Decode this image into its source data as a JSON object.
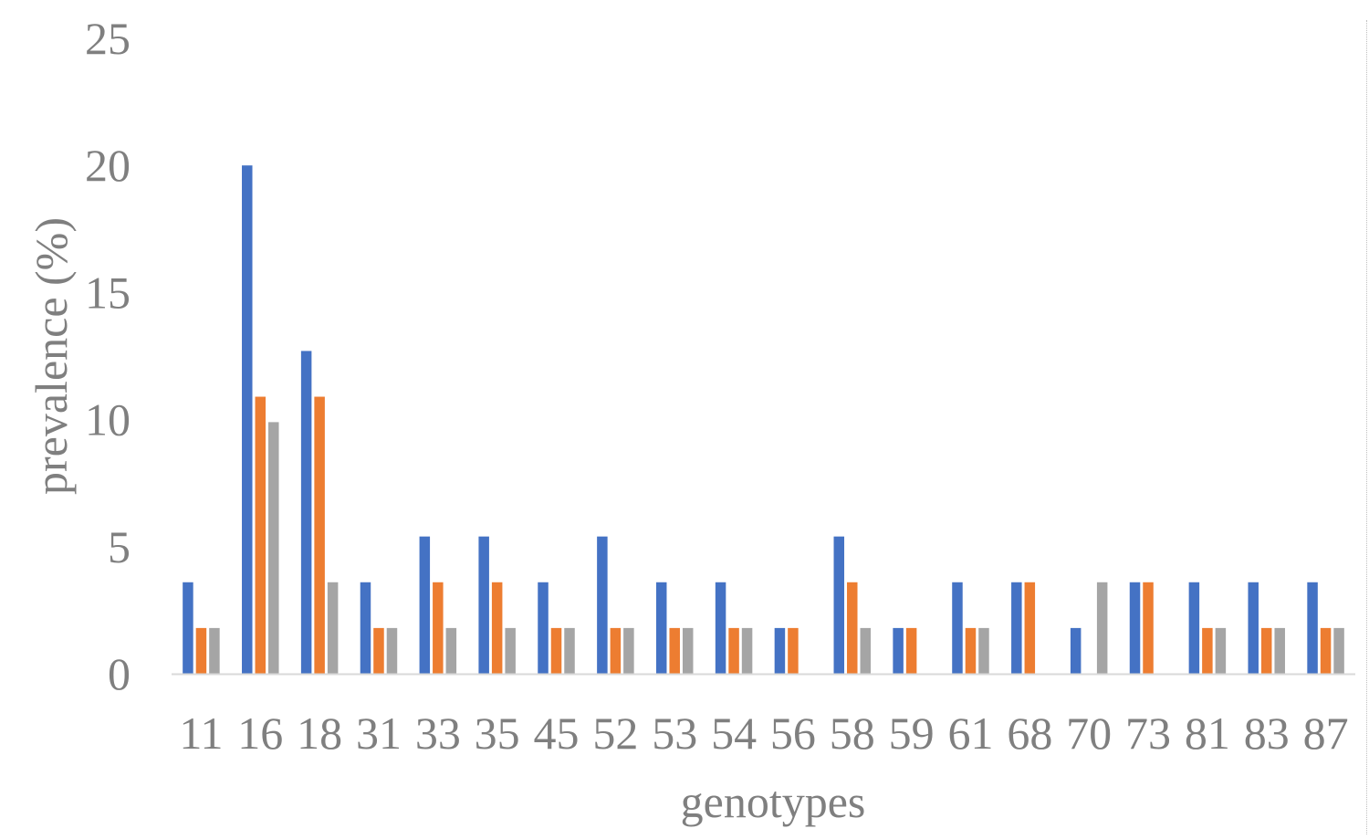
{
  "colors": {
    "series": [
      "#4472c4",
      "#ed7d31",
      "#a5a5a5"
    ],
    "axis_text": "#7f7f7f",
    "baseline": "#d9d9d9"
  },
  "chart_data": {
    "type": "bar",
    "categories": [
      "11",
      "16",
      "18",
      "31",
      "33",
      "35",
      "45",
      "52",
      "53",
      "54",
      "56",
      "58",
      "59",
      "61",
      "68",
      "70",
      "73",
      "81",
      "83",
      "87"
    ],
    "series": [
      {
        "values": [
          3.6,
          20,
          12.7,
          3.6,
          5.4,
          5.4,
          3.6,
          5.4,
          3.6,
          3.6,
          1.8,
          5.4,
          1.8,
          3.6,
          3.6,
          1.8,
          3.6,
          3.6,
          3.6,
          3.6
        ]
      },
      {
        "values": [
          1.8,
          10.9,
          10.9,
          1.8,
          3.6,
          3.6,
          1.8,
          1.8,
          1.8,
          1.8,
          1.8,
          3.6,
          1.8,
          1.8,
          3.6,
          0,
          3.6,
          1.8,
          1.8,
          1.8
        ]
      },
      {
        "values": [
          1.8,
          9.9,
          3.6,
          1.8,
          1.8,
          1.8,
          1.8,
          1.8,
          1.8,
          1.8,
          0,
          1.8,
          0,
          1.8,
          0,
          3.6,
          0,
          1.8,
          1.8,
          1.8
        ]
      }
    ],
    "xlabel": "genotypes",
    "ylabel": "prevalence (%)",
    "ylim": [
      0,
      25
    ],
    "yticks": [
      "0",
      "5",
      "10",
      "15",
      "20",
      "25"
    ],
    "grid": false,
    "legend": "none"
  }
}
